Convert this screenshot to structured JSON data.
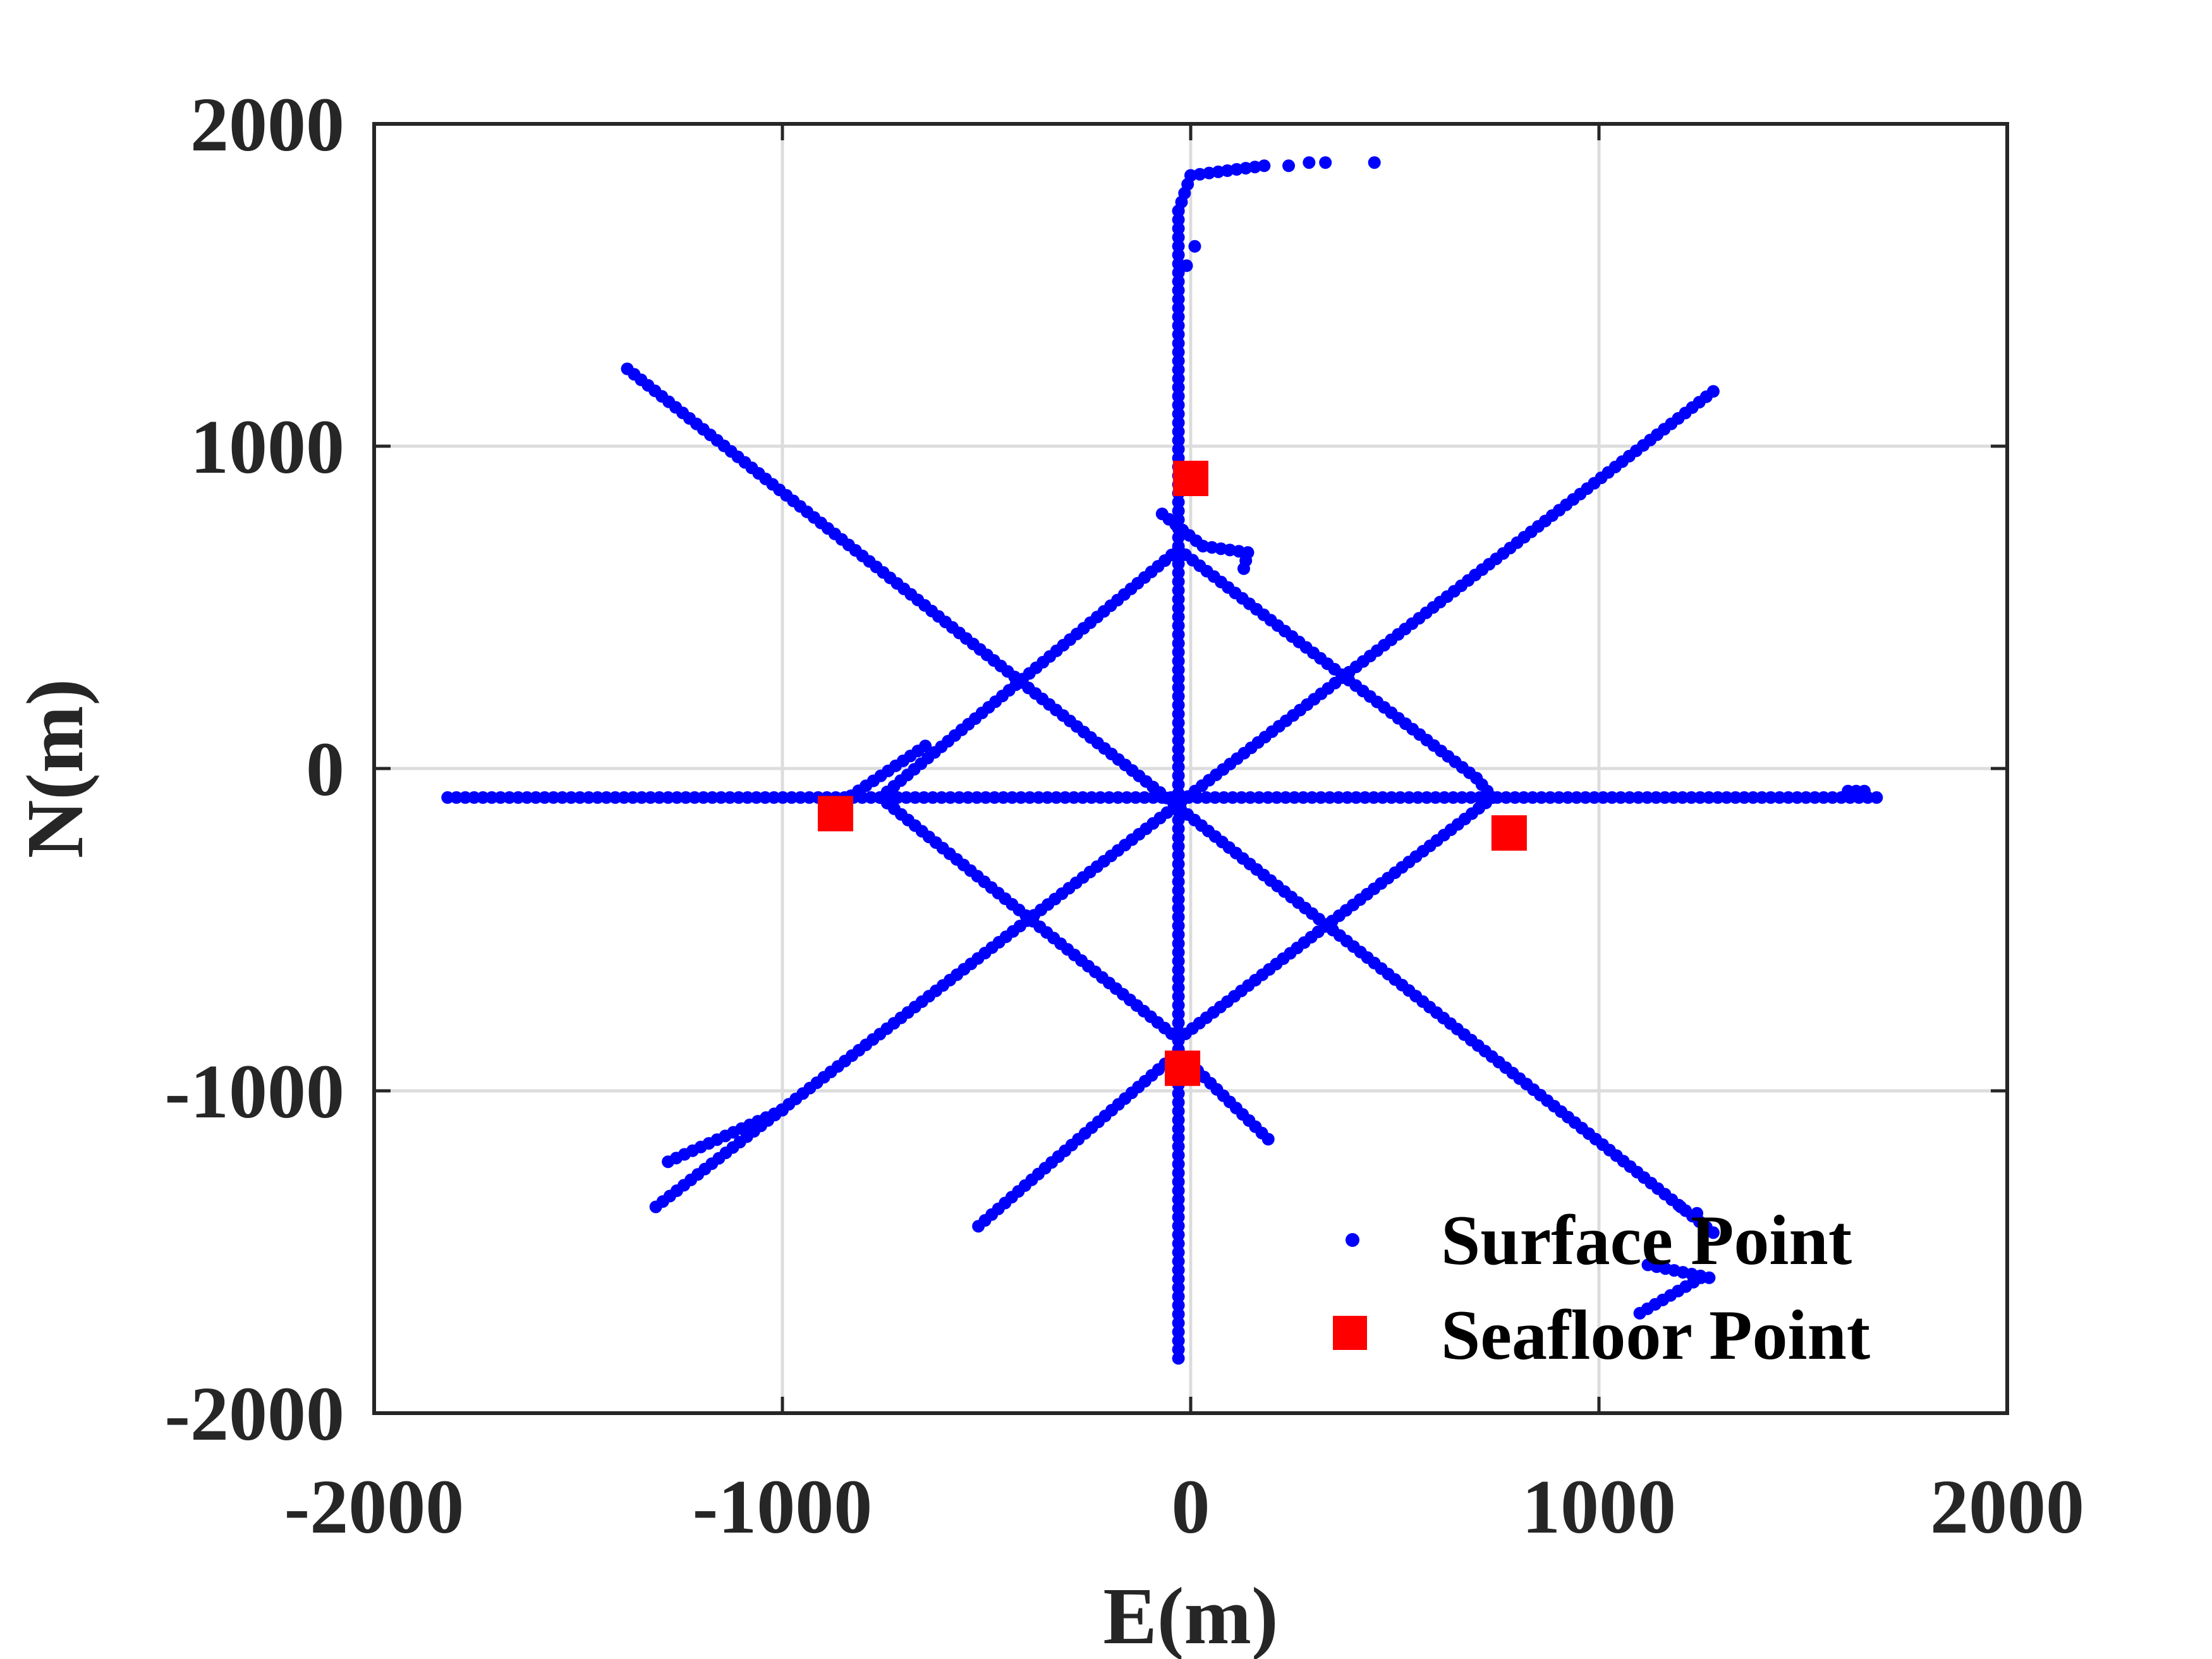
{
  "chart_data": {
    "type": "scatter",
    "title": "",
    "xlabel": "E(m)",
    "ylabel": "N(m)",
    "xlim": [
      -2000,
      2000
    ],
    "ylim": [
      -2000,
      2000
    ],
    "xticks": [
      -2000,
      -1000,
      0,
      1000,
      2000
    ],
    "yticks": [
      -2000,
      -1000,
      0,
      1000,
      2000
    ],
    "x_tick_labels": [
      "-2000",
      "-1000",
      "0",
      "1000",
      "2000"
    ],
    "y_tick_labels": [
      "-2000",
      "-1000",
      "0",
      "1000",
      "2000"
    ],
    "grid": true,
    "legend": {
      "placement": "bottom-right",
      "entries": [
        "Surface Point",
        "Seafloor Point"
      ]
    },
    "series": [
      {
        "name": "Surface Point",
        "marker": "dot",
        "color": "#0000ff",
        "segments": [
          {
            "from": [
              -1820,
              -90
            ],
            "to": [
              1680,
              -90
            ]
          },
          {
            "from": [
              -30,
              -1830
            ],
            "to": [
              -30,
              1730
            ]
          },
          {
            "from": [
              -30,
              1730
            ],
            "to": [
              0,
              1840
            ]
          },
          {
            "from": [
              0,
              1840
            ],
            "to": [
              180,
              1870
            ]
          },
          {
            "from": [
              -1380,
              1240
            ],
            "to": [
              1280,
              -1440
            ]
          },
          {
            "from": [
              -1310,
              -1360
            ],
            "to": [
              1280,
              1170
            ]
          },
          {
            "from": [
              -520,
              -1420
            ],
            "to": [
              -30,
              -880
            ]
          },
          {
            "from": [
              -30,
              -880
            ],
            "to": [
              190,
              -1150
            ]
          },
          {
            "from": [
              -30,
              680
            ],
            "to": [
              700,
              -30
            ]
          },
          {
            "from": [
              700,
              -30
            ],
            "to": [
              740,
              -90
            ]
          },
          {
            "from": [
              740,
              -90
            ],
            "to": [
              -30,
              -840
            ]
          },
          {
            "from": [
              -30,
              -840
            ],
            "to": [
              -760,
              -90
            ]
          },
          {
            "from": [
              -760,
              -90
            ],
            "to": [
              -30,
              680
            ]
          },
          {
            "from": [
              -70,
              790
            ],
            "to": [
              30,
              690
            ]
          },
          {
            "from": [
              30,
              690
            ],
            "to": [
              140,
              670
            ]
          },
          {
            "from": [
              140,
              670
            ],
            "to": [
              130,
              620
            ]
          },
          {
            "from": [
              -850,
              -100
            ],
            "to": [
              -650,
              70
            ]
          },
          {
            "from": [
              -1280,
              -1220
            ],
            "to": [
              -1000,
              -1060
            ]
          },
          {
            "from": [
              1120,
              -1540
            ],
            "to": [
              1270,
              -1580
            ]
          },
          {
            "from": [
              1100,
              -1690
            ],
            "to": [
              1250,
              -1580
            ]
          },
          {
            "from": [
              1610,
              -70
            ],
            "to": [
              1650,
              -70
            ]
          }
        ],
        "points": [
          [
            240,
            1870
          ],
          [
            290,
            1880
          ],
          [
            330,
            1880
          ],
          [
            450,
            1880
          ],
          [
            10,
            1620
          ],
          [
            -10,
            1560
          ],
          [
            1200,
            -1360
          ],
          [
            1240,
            -1380
          ]
        ]
      },
      {
        "name": "Seafloor Point",
        "marker": "square",
        "color": "#ff0000",
        "points": [
          [
            -870,
            -140
          ],
          [
            -20,
            -930
          ],
          [
            0,
            900
          ],
          [
            780,
            -200
          ]
        ]
      }
    ]
  }
}
